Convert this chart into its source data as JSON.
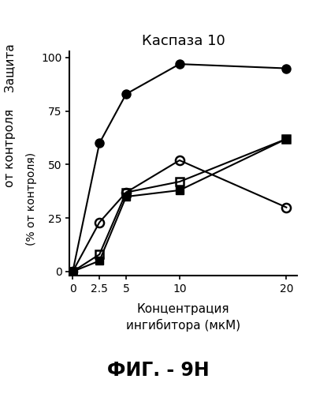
{
  "title": "Каспаза 10",
  "xlabel_line1": "Концентрация",
  "xlabel_line2": "ингибитора (мкМ)",
  "ylabel_top": "Защита",
  "ylabel_mid": "от контроля",
  "ylabel_bot": "(% от контроля)",
  "caption": "ФИГ. - 9Н",
  "x": [
    0,
    2.5,
    5,
    10,
    20
  ],
  "series": [
    {
      "label": "filled_circle",
      "y": [
        0,
        60,
        83,
        97,
        95
      ],
      "marker": "o",
      "fillstyle": "full",
      "color": "black",
      "markersize": 8,
      "linewidth": 1.5
    },
    {
      "label": "open_circle",
      "y": [
        0,
        23,
        37,
        52,
        30
      ],
      "marker": "o",
      "fillstyle": "none",
      "color": "black",
      "markersize": 8,
      "linewidth": 1.5
    },
    {
      "label": "filled_square",
      "y": [
        0,
        5,
        35,
        38,
        62
      ],
      "marker": "s",
      "fillstyle": "full",
      "color": "black",
      "markersize": 7,
      "linewidth": 1.5
    },
    {
      "label": "open_square",
      "y": [
        0,
        8,
        37,
        42,
        62
      ],
      "marker": "s",
      "fillstyle": "none",
      "color": "black",
      "markersize": 7,
      "linewidth": 1.5
    }
  ],
  "xlim": [
    -0.3,
    21
  ],
  "ylim": [
    -2,
    103
  ],
  "xticks": [
    0,
    2.5,
    5,
    10,
    20
  ],
  "yticks": [
    0,
    25,
    50,
    75,
    100
  ],
  "background_color": "#ffffff"
}
